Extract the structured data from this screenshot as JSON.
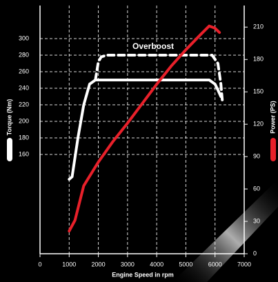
{
  "chart_data": {
    "type": "line",
    "xlabel": "Engine Speed in rpm",
    "xlim": [
      0,
      7000
    ],
    "xticks": [
      0,
      1000,
      2000,
      3000,
      4000,
      5000,
      6000,
      7000
    ],
    "ylim": [
      40,
      340
    ],
    "yticks": [
      160,
      180,
      200,
      220,
      240,
      260,
      280,
      300
    ],
    "y2lim": [
      0,
      230
    ],
    "y2ticks": [
      0,
      30,
      60,
      90,
      120,
      150,
      180,
      210
    ],
    "grid": true,
    "series": [
      {
        "name": "Torque (Nm)",
        "color": "#ffffff",
        "x": [
          1000,
          1100,
          1300,
          1500,
          1700,
          1900,
          3000,
          4000,
          5000,
          5800,
          6000,
          6100,
          6200
        ],
        "values": [
          130,
          133,
          180,
          220,
          245,
          250,
          250,
          250,
          250,
          250,
          245,
          238,
          230
        ]
      },
      {
        "name": "Overboost",
        "color": "#ffffff",
        "dashed": true,
        "x": [
          1900,
          2000,
          2100,
          2300,
          3000,
          4000,
          5000,
          5900,
          6100,
          6200,
          6250
        ],
        "values": [
          250,
          272,
          278,
          280,
          280,
          280,
          280,
          280,
          270,
          245,
          225
        ]
      },
      {
        "name": "Power (PS)",
        "color": "#e8202a",
        "axis": "y2",
        "x": [
          1000,
          1200,
          1500,
          2000,
          2500,
          3000,
          3500,
          4000,
          4500,
          5000,
          5500,
          5800,
          6000,
          6150
        ],
        "values": [
          21,
          31,
          63,
          85,
          104,
          121,
          139,
          157,
          174,
          189,
          203,
          211,
          209,
          205
        ]
      }
    ]
  }
}
